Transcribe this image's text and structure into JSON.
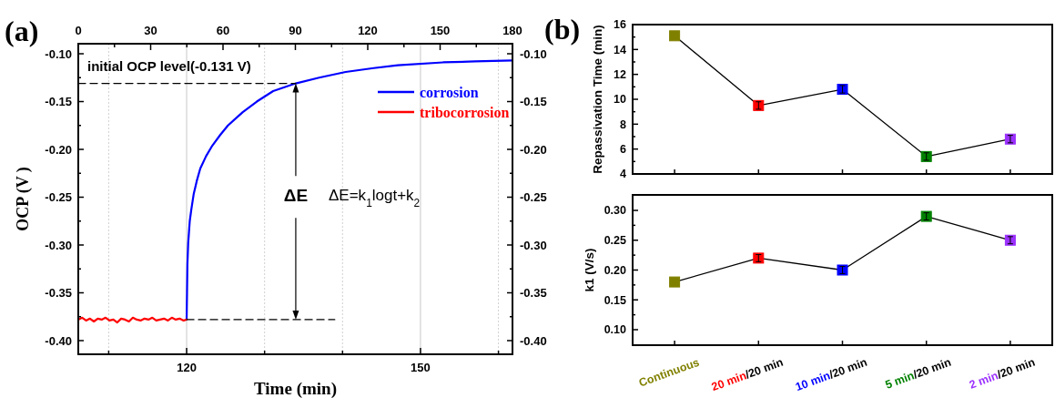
{
  "chart_data": [
    {
      "type": "line",
      "title": "(a)",
      "xlabel": "Time (min)",
      "ylabel": "OCP (V )",
      "xlim": [
        106.1,
        161.8
      ],
      "xticks": [
        {
          "value": 110,
          "label": null
        },
        120,
        {
          "value": 130,
          "label": null
        },
        {
          "value": 140,
          "label": null
        },
        150,
        {
          "value": 160,
          "label": null
        }
      ],
      "x2lim": [
        0,
        180
      ],
      "x2ticks": [
        0,
        {
          "value": 15,
          "label": null
        },
        30,
        {
          "value": 45,
          "label": null
        },
        60,
        {
          "value": 75,
          "label": null
        },
        90,
        {
          "value": 105,
          "label": null
        },
        120,
        {
          "value": 135,
          "label": null
        },
        150,
        {
          "value": 165,
          "label": null
        },
        180
      ],
      "ylim": [
        -0.4143,
        -0.0895
      ],
      "yticks": [
        {
          "value": -0.1,
          "label": "-0.10"
        },
        {
          "value": -0.125,
          "label": null
        },
        {
          "value": -0.15,
          "label": "-0.15"
        },
        {
          "value": -0.175,
          "label": null
        },
        {
          "value": -0.2,
          "label": "-0.20"
        },
        {
          "value": -0.225,
          "label": null
        },
        {
          "value": -0.25,
          "label": "-0.25"
        },
        {
          "value": -0.275,
          "label": null
        },
        {
          "value": -0.3,
          "label": "-0.30"
        },
        {
          "value": -0.325,
          "label": null
        },
        {
          "value": -0.35,
          "label": "-0.35"
        },
        {
          "value": -0.375,
          "label": null
        },
        {
          "value": -0.4,
          "label": "-0.40"
        }
      ],
      "y2lim": [
        -0.4143,
        -0.0895
      ],
      "y2ticks": [
        {
          "value": -0.1,
          "label": "-0.10"
        },
        {
          "value": -0.125,
          "label": null
        },
        {
          "value": -0.15,
          "label": "-0.15"
        },
        {
          "value": -0.175,
          "label": null
        },
        {
          "value": -0.2,
          "label": "-0.20"
        },
        {
          "value": -0.225,
          "label": null
        },
        {
          "value": -0.25,
          "label": "-0.25"
        },
        {
          "value": -0.275,
          "label": null
        },
        {
          "value": -0.3,
          "label": "-0.30"
        },
        {
          "value": -0.325,
          "label": null
        },
        {
          "value": -0.35,
          "label": "-0.35"
        },
        {
          "value": -0.375,
          "label": null
        },
        {
          "value": -0.4,
          "label": "-0.40"
        }
      ],
      "grid": "x",
      "legend": "top right",
      "annotations": [
        "initial OCP level(-0.131 V)",
        "ΔE",
        "ΔE=k$_{1}$logt+k$_{2}$"
      ],
      "series": [
        {
          "name": "corrosion",
          "color": "#0000ff",
          "x": [
            120,
            120.05,
            120.1,
            120.2,
            120.4,
            120.6,
            120.9,
            121.3,
            121.75,
            122.5,
            123.3,
            124.3,
            125.3,
            127.2,
            129,
            131.1,
            134,
            137,
            140.4,
            144,
            147.1,
            152.9,
            157,
            161.8
          ],
          "values": [
            -0.378,
            -0.35,
            -0.32,
            -0.298,
            -0.275,
            -0.263,
            -0.247,
            -0.233,
            -0.22,
            -0.207,
            -0.196,
            -0.185,
            -0.175,
            -0.161,
            -0.15,
            -0.139,
            -0.131,
            -0.125,
            -0.119,
            -0.115,
            -0.112,
            -0.109,
            -0.108,
            -0.107
          ]
        },
        {
          "name": "tribocorrosion",
          "color": "#ff0000",
          "x": [
            106.1,
            106.6,
            107.1,
            107.6,
            108.1,
            108.6,
            109.1,
            109.6,
            110.1,
            110.6,
            111.1,
            111.6,
            112.1,
            112.6,
            113.1,
            113.6,
            114.1,
            114.6,
            115.1,
            115.6,
            116.1,
            116.6,
            117.1,
            117.6,
            118.1,
            118.6,
            119.1,
            119.6,
            120
          ],
          "values": [
            -0.378,
            -0.376,
            -0.379,
            -0.377,
            -0.38,
            -0.377,
            -0.378,
            -0.376,
            -0.379,
            -0.378,
            -0.381,
            -0.377,
            -0.378,
            -0.38,
            -0.376,
            -0.378,
            -0.379,
            -0.377,
            -0.378,
            -0.376,
            -0.379,
            -0.378,
            -0.377,
            -0.379,
            -0.376,
            -0.378,
            -0.377,
            -0.379,
            -0.378
          ]
        },
        {
          "color": "#000000",
          "line_style": "dashed",
          "x": [
            106.1,
            134
          ],
          "values": [
            -0.131,
            -0.131
          ]
        },
        {
          "color": "#000000",
          "line_style": "dashed",
          "x": [
            120,
            139
          ],
          "values": [
            -0.378,
            -0.378
          ]
        }
      ]
    },
    {
      "type": "line",
      "title": "(b)",
      "ylabel": "Repassivation Time (min)",
      "tick_labels": "y",
      "marker": "square",
      "categories": [
        null,
        null,
        null,
        null,
        null
      ],
      "ylim": [
        4,
        16
      ],
      "yticks": [
        4,
        {
          "value": 5,
          "label": null
        },
        6,
        {
          "value": 7,
          "label": null
        },
        8,
        {
          "value": 9,
          "label": null
        },
        10,
        {
          "value": 11,
          "label": null
        },
        12,
        {
          "value": 13,
          "label": null
        },
        14,
        {
          "value": 15,
          "label": null
        },
        16
      ],
      "series": [
        {
          "color": "#000000",
          "colors": [
            "#808000",
            "#ff0000",
            "#0000ff",
            "#008000",
            "#9b30ff"
          ],
          "values": [
            15.1,
            9.5,
            10.8,
            5.4,
            6.8
          ],
          "errors": [
            null,
            0.3,
            0.3,
            0.3,
            0.3
          ]
        }
      ]
    },
    {
      "type": "line",
      "ylabel": "k1 (V/s)",
      "marker": "square",
      "categories": [
        "Continuous",
        "20 min/20 min",
        "10 min/20 min",
        "5 min/20 min",
        "2 min/20 min"
      ],
      "ylim": [
        0.074,
        0.326
      ],
      "yticks": [
        {
          "value": 0.1,
          "label": "0.10"
        },
        {
          "value": 0.125,
          "label": null
        },
        {
          "value": 0.15,
          "label": "0.15"
        },
        {
          "value": 0.175,
          "label": null
        },
        {
          "value": 0.2,
          "label": "0.20"
        },
        {
          "value": 0.225,
          "label": null
        },
        {
          "value": 0.25,
          "label": "0.25"
        },
        {
          "value": 0.275,
          "label": null
        },
        {
          "value": 0.3,
          "label": "0.30"
        }
      ],
      "series": [
        {
          "color": "#000000",
          "colors": [
            "#808000",
            "#ff0000",
            "#0000ff",
            "#008000",
            "#9b30ff"
          ],
          "values": [
            0.18,
            0.22,
            0.2,
            0.29,
            0.25
          ],
          "errors": [
            null,
            0.006,
            0.006,
            0.006,
            0.006
          ]
        }
      ]
    }
  ]
}
